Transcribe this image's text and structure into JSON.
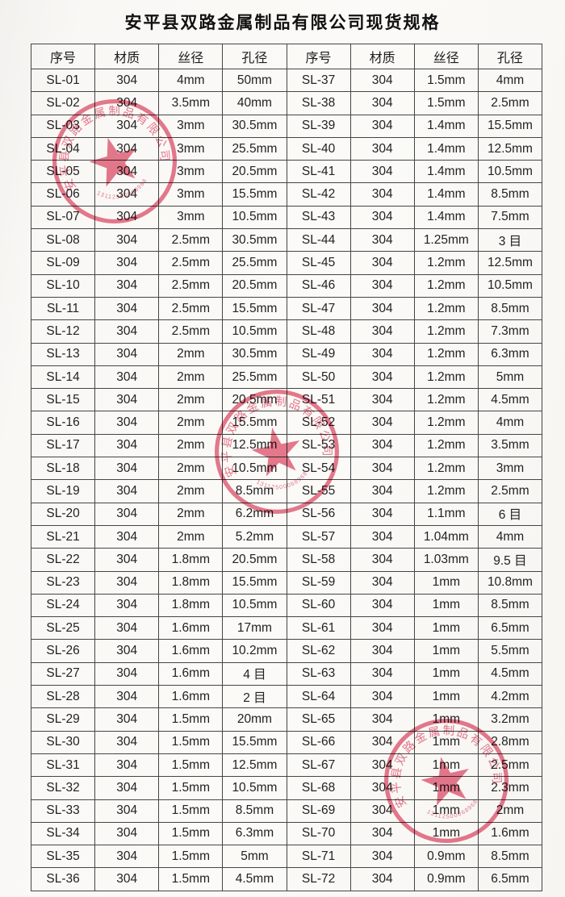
{
  "page": {
    "title": "安平县双路金属制品有限公司现货规格"
  },
  "table": {
    "headers": [
      "序号",
      "材质",
      "丝径",
      "孔径",
      "序号",
      "材质",
      "丝径",
      "孔径"
    ],
    "rows": [
      [
        "SL-01",
        "304",
        "4mm",
        "50mm",
        "SL-37",
        "304",
        "1.5mm",
        "4mm"
      ],
      [
        "SL-02",
        "304",
        "3.5mm",
        "40mm",
        "SL-38",
        "304",
        "1.5mm",
        "2.5mm"
      ],
      [
        "SL-03",
        "304",
        "3mm",
        "30.5mm",
        "SL-39",
        "304",
        "1.4mm",
        "15.5mm"
      ],
      [
        "SL-04",
        "304",
        "3mm",
        "25.5mm",
        "SL-40",
        "304",
        "1.4mm",
        "12.5mm"
      ],
      [
        "SL-05",
        "304",
        "3mm",
        "20.5mm",
        "SL-41",
        "304",
        "1.4mm",
        "10.5mm"
      ],
      [
        "SL-06",
        "304",
        "3mm",
        "15.5mm",
        "SL-42",
        "304",
        "1.4mm",
        "8.5mm"
      ],
      [
        "SL-07",
        "304",
        "3mm",
        "10.5mm",
        "SL-43",
        "304",
        "1.4mm",
        "7.5mm"
      ],
      [
        "SL-08",
        "304",
        "2.5mm",
        "30.5mm",
        "SL-44",
        "304",
        "1.25mm",
        "3 目"
      ],
      [
        "SL-09",
        "304",
        "2.5mm",
        "25.5mm",
        "SL-45",
        "304",
        "1.2mm",
        "12.5mm"
      ],
      [
        "SL-10",
        "304",
        "2.5mm",
        "20.5mm",
        "SL-46",
        "304",
        "1.2mm",
        "10.5mm"
      ],
      [
        "SL-11",
        "304",
        "2.5mm",
        "15.5mm",
        "SL-47",
        "304",
        "1.2mm",
        "8.5mm"
      ],
      [
        "SL-12",
        "304",
        "2.5mm",
        "10.5mm",
        "SL-48",
        "304",
        "1.2mm",
        "7.3mm"
      ],
      [
        "SL-13",
        "304",
        "2mm",
        "30.5mm",
        "SL-49",
        "304",
        "1.2mm",
        "6.3mm"
      ],
      [
        "SL-14",
        "304",
        "2mm",
        "25.5mm",
        "SL-50",
        "304",
        "1.2mm",
        "5mm"
      ],
      [
        "SL-15",
        "304",
        "2mm",
        "20.5mm",
        "SL-51",
        "304",
        "1.2mm",
        "4.5mm"
      ],
      [
        "SL-16",
        "304",
        "2mm",
        "15.5mm",
        "SL-52",
        "304",
        "1.2mm",
        "4mm"
      ],
      [
        "SL-17",
        "304",
        "2mm",
        "12.5mm",
        "SL-53",
        "304",
        "1.2mm",
        "3.5mm"
      ],
      [
        "SL-18",
        "304",
        "2mm",
        "10.5mm",
        "SL-54",
        "304",
        "1.2mm",
        "3mm"
      ],
      [
        "SL-19",
        "304",
        "2mm",
        "8.5mm",
        "SL-55",
        "304",
        "1.2mm",
        "2.5mm"
      ],
      [
        "SL-20",
        "304",
        "2mm",
        "6.2mm",
        "SL-56",
        "304",
        "1.1mm",
        "6 目"
      ],
      [
        "SL-21",
        "304",
        "2mm",
        "5.2mm",
        "SL-57",
        "304",
        "1.04mm",
        "4mm"
      ],
      [
        "SL-22",
        "304",
        "1.8mm",
        "20.5mm",
        "SL-58",
        "304",
        "1.03mm",
        "9.5 目"
      ],
      [
        "SL-23",
        "304",
        "1.8mm",
        "15.5mm",
        "SL-59",
        "304",
        "1mm",
        "10.8mm"
      ],
      [
        "SL-24",
        "304",
        "1.8mm",
        "10.5mm",
        "SL-60",
        "304",
        "1mm",
        "8.5mm"
      ],
      [
        "SL-25",
        "304",
        "1.6mm",
        "17mm",
        "SL-61",
        "304",
        "1mm",
        "6.5mm"
      ],
      [
        "SL-26",
        "304",
        "1.6mm",
        "10.2mm",
        "SL-62",
        "304",
        "1mm",
        "5.5mm"
      ],
      [
        "SL-27",
        "304",
        "1.6mm",
        "4 目",
        "SL-63",
        "304",
        "1mm",
        "4.5mm"
      ],
      [
        "SL-28",
        "304",
        "1.6mm",
        "2 目",
        "SL-64",
        "304",
        "1mm",
        "4.2mm"
      ],
      [
        "SL-29",
        "304",
        "1.5mm",
        "20mm",
        "SL-65",
        "304",
        "1mm",
        "3.2mm"
      ],
      [
        "SL-30",
        "304",
        "1.5mm",
        "15.5mm",
        "SL-66",
        "304",
        "1mm",
        "2.8mm"
      ],
      [
        "SL-31",
        "304",
        "1.5mm",
        "12.5mm",
        "SL-67",
        "304",
        "1mm",
        "2.5mm"
      ],
      [
        "SL-32",
        "304",
        "1.5mm",
        "10.5mm",
        "SL-68",
        "304",
        "1mm",
        "2.3mm"
      ],
      [
        "SL-33",
        "304",
        "1.5mm",
        "8.5mm",
        "SL-69",
        "304",
        "1mm",
        "2mm"
      ],
      [
        "SL-34",
        "304",
        "1.5mm",
        "6.3mm",
        "SL-70",
        "304",
        "1mm",
        "1.6mm"
      ],
      [
        "SL-35",
        "304",
        "1.5mm",
        "5mm",
        "SL-71",
        "304",
        "0.9mm",
        "8.5mm"
      ],
      [
        "SL-36",
        "304",
        "1.5mm",
        "4.5mm",
        "SL-72",
        "304",
        "0.9mm",
        "6.5mm"
      ]
    ]
  },
  "stamp": {
    "company_name": "安平县双路金属制品有限公司",
    "serial_number": "13112500068968",
    "color": "#e25c78"
  }
}
